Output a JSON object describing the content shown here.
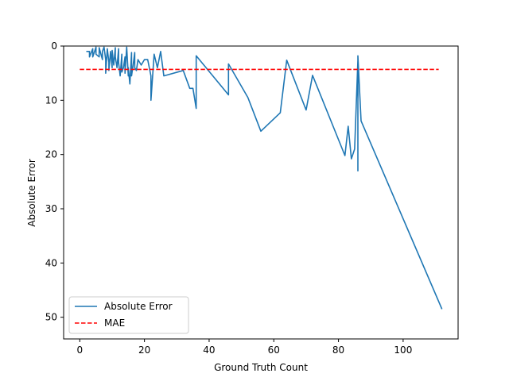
{
  "chart_data": {
    "type": "line",
    "title": "",
    "xlabel": "Ground Truth Count",
    "ylabel": "Absolute Error",
    "xlim": [
      -5,
      117
    ],
    "ylim": [
      0,
      54
    ],
    "y_inverted": true,
    "xticks": [
      0,
      20,
      40,
      60,
      80,
      100
    ],
    "yticks": [
      0,
      10,
      20,
      30,
      40,
      50
    ],
    "grid": false,
    "legend_position": "lower-left",
    "series": [
      {
        "name": "Absolute Error",
        "color": "#1f77b4",
        "style": "solid",
        "x": [
          2,
          3,
          3,
          4,
          4,
          5,
          5,
          6,
          6,
          7,
          7,
          7.5,
          8,
          8,
          8.5,
          9,
          9,
          9.5,
          10,
          10,
          10.5,
          11,
          11,
          11.5,
          12,
          12,
          12.5,
          13,
          13,
          13.5,
          14,
          14,
          14.5,
          15,
          15,
          15.5,
          16,
          16,
          16.5,
          17,
          17,
          17.5,
          18,
          18.5,
          19,
          20,
          21,
          22,
          22,
          23,
          24,
          25,
          26,
          32,
          34,
          35,
          36,
          36,
          46,
          46,
          52,
          56,
          62,
          64,
          70,
          72,
          82,
          83,
          84,
          85,
          86,
          86,
          86,
          87,
          112
        ],
        "y": [
          1,
          1,
          2,
          0.5,
          2,
          0.2,
          1.5,
          2,
          0.3,
          2.5,
          1,
          0.2,
          2.5,
          5,
          0.5,
          3,
          4.5,
          1,
          4,
          0.8,
          3.5,
          0.3,
          2,
          4,
          0.5,
          3,
          5.5,
          1.5,
          4.8,
          4,
          2,
          5,
          0.2,
          5.5,
          4,
          7,
          1.2,
          5.5,
          3.5,
          1.2,
          4,
          4.5,
          2.5,
          3,
          3.5,
          2.5,
          2.5,
          5.5,
          10,
          1.5,
          4,
          1,
          5.5,
          4.5,
          7.8,
          7.8,
          11.5,
          1.8,
          9,
          3.3,
          9.5,
          15.7,
          12.3,
          2.6,
          11.8,
          5.4,
          20.2,
          14.8,
          20.8,
          19,
          2.6,
          23,
          1.8,
          13.8,
          48.5
        ]
      },
      {
        "name": "MAE",
        "color": "#ff0000",
        "style": "dashed",
        "x": [
          0,
          111
        ],
        "y": [
          4.3,
          4.3
        ]
      }
    ]
  }
}
